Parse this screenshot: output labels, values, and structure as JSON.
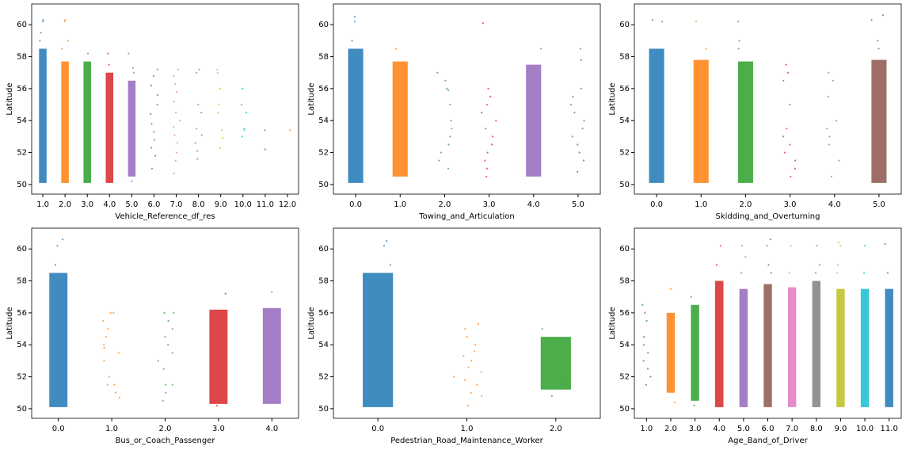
{
  "chart_data": [
    {
      "type": "strip",
      "xlabel": "Vehicle_Reference_df_res",
      "ylabel": "Latitude",
      "categories": [
        "1.0",
        "2.0",
        "3.0",
        "4.0",
        "5.0",
        "6.0",
        "7.0",
        "8.0",
        "9.0",
        "10.0",
        "11.0",
        "12.0"
      ],
      "ylim": [
        49.4,
        61.3
      ],
      "yticks": [
        50,
        52,
        54,
        56,
        58,
        60
      ],
      "strips": [
        {
          "color": "#1f77b4",
          "band": [
            50.1,
            58.5
          ],
          "points": [
            60.2,
            60.3,
            59.0,
            59.5
          ]
        },
        {
          "color": "#ff7f0e",
          "band": [
            50.1,
            57.7
          ],
          "points": [
            60.2,
            60.3,
            58.5,
            59.0
          ]
        },
        {
          "color": "#2ca02c",
          "band": [
            50.1,
            57.7
          ],
          "points": [
            58.2
          ]
        },
        {
          "color": "#d62728",
          "band": [
            50.1,
            57.0
          ],
          "points": [
            57.5,
            58.2
          ]
        },
        {
          "color": "#9467bd",
          "band": [
            50.5,
            56.5
          ],
          "points": [
            57.0,
            57.3,
            58.2,
            50.2
          ]
        },
        {
          "color": "#8c564b",
          "points": [
            51.0,
            51.8,
            52.3,
            52.8,
            53.3,
            53.8,
            54.4,
            55.0,
            55.6,
            56.2,
            56.8,
            57.2
          ]
        },
        {
          "color": "#e377c2",
          "points": [
            50.7,
            51.5,
            52.0,
            52.6,
            53.1,
            53.6,
            54.0,
            54.5,
            55.2,
            55.8,
            56.3,
            56.8,
            57.2
          ]
        },
        {
          "color": "#7f7f7f",
          "points": [
            51.6,
            52.1,
            52.6,
            53.1,
            53.5,
            54.5,
            55.0,
            57.0,
            57.2
          ]
        },
        {
          "color": "#bcbd22",
          "points": [
            52.3,
            52.9,
            53.4,
            54.5,
            55.0,
            56.0,
            57.0,
            57.2
          ]
        },
        {
          "color": "#17becf",
          "points": [
            53.0,
            53.4,
            53.5,
            54.5,
            55.0,
            56.0
          ]
        },
        {
          "color": "#1f77b4",
          "points": [
            52.2,
            53.4
          ]
        },
        {
          "color": "#ff7f0e",
          "points": [
            53.4
          ]
        }
      ]
    },
    {
      "type": "strip",
      "xlabel": "Towing_and_Articulation",
      "ylabel": "Latitude",
      "categories": [
        "0.0",
        "1.0",
        "2.0",
        "3.0",
        "4.0",
        "5.0"
      ],
      "ylim": [
        49.4,
        61.3
      ],
      "yticks": [
        50,
        52,
        54,
        56,
        58,
        60
      ],
      "strips": [
        {
          "color": "#1f77b4",
          "band": [
            50.1,
            58.5
          ],
          "points": [
            60.2,
            60.5,
            59.0
          ]
        },
        {
          "color": "#ff7f0e",
          "band": [
            50.5,
            57.7
          ],
          "points": [
            58.5
          ]
        },
        {
          "color": "#2ca02c",
          "points": [
            51.0,
            51.5,
            52.0,
            52.5,
            53.0,
            53.5,
            54.0,
            55.0,
            55.9,
            56.0,
            56.5,
            57.0
          ]
        },
        {
          "color": "#d62728",
          "points": [
            50.5,
            51.0,
            51.5,
            52.0,
            52.5,
            53.0,
            53.5,
            54.0,
            54.5,
            55.0,
            55.5,
            56.0,
            60.1
          ]
        },
        {
          "color": "#9467bd",
          "band": [
            50.5,
            57.5
          ],
          "points": [
            58.5
          ]
        },
        {
          "color": "#8c564b",
          "points": [
            50.8,
            51.5,
            52.0,
            52.5,
            53.0,
            53.5,
            54.0,
            54.5,
            55.0,
            55.5,
            56.0,
            57.8,
            58.5
          ]
        }
      ]
    },
    {
      "type": "strip",
      "xlabel": "Skidding_and_Overturning",
      "ylabel": "Latitude",
      "categories": [
        "0.0",
        "1.0",
        "2.0",
        "3.0",
        "4.0",
        "5.0"
      ],
      "ylim": [
        49.4,
        61.3
      ],
      "yticks": [
        50,
        52,
        54,
        56,
        58,
        60
      ],
      "strips": [
        {
          "color": "#1f77b4",
          "band": [
            50.1,
            58.5
          ],
          "points": [
            60.2,
            60.3
          ]
        },
        {
          "color": "#ff7f0e",
          "band": [
            50.1,
            57.8
          ],
          "points": [
            58.5,
            60.2
          ]
        },
        {
          "color": "#2ca02c",
          "band": [
            50.1,
            57.7
          ],
          "points": [
            58.5,
            59.0,
            60.2
          ]
        },
        {
          "color": "#d62728",
          "points": [
            50.5,
            51.0,
            51.5,
            52.0,
            52.5,
            53.0,
            53.5,
            55.0,
            56.5,
            57.0,
            57.5
          ]
        },
        {
          "color": "#9467bd",
          "points": [
            50.5,
            51.5,
            52.5,
            53.0,
            53.5,
            54.0,
            55.5,
            56.5,
            57.0
          ]
        },
        {
          "color": "#8c564b",
          "band": [
            50.1,
            57.8
          ],
          "points": [
            58.5,
            59.0,
            60.3,
            60.6
          ]
        }
      ]
    },
    {
      "type": "strip",
      "xlabel": "Bus_or_Coach_Passenger",
      "ylabel": "Latitude",
      "categories": [
        "0.0",
        "1.0",
        "2.0",
        "3.0",
        "4.0"
      ],
      "ylim": [
        49.4,
        61.3
      ],
      "yticks": [
        50,
        52,
        54,
        56,
        58,
        60
      ],
      "strips": [
        {
          "color": "#1f77b4",
          "band": [
            50.1,
            58.5
          ],
          "points": [
            60.2,
            60.6,
            59.0
          ]
        },
        {
          "color": "#ff7f0e",
          "points": [
            50.7,
            51.0,
            51.5,
            51.5,
            52.0,
            53.0,
            53.5,
            53.8,
            54.0,
            54.5,
            55.0,
            55.5,
            56.0,
            56.0
          ]
        },
        {
          "color": "#2ca02c",
          "points": [
            50.5,
            51.0,
            51.5,
            51.5,
            52.5,
            53.0,
            53.5,
            54.0,
            54.5,
            55.0,
            55.5,
            56.0,
            56.0
          ]
        },
        {
          "color": "#d62728",
          "band": [
            50.3,
            56.2
          ],
          "points": [
            57.2,
            50.2
          ]
        },
        {
          "color": "#9467bd",
          "band": [
            50.3,
            56.3
          ],
          "points": [
            57.3
          ]
        }
      ]
    },
    {
      "type": "strip",
      "xlabel": "Pedestrian_Road_Maintenance_Worker",
      "ylabel": "Latitude",
      "categories": [
        "0.0",
        "1.0",
        "2.0"
      ],
      "ylim": [
        49.4,
        61.3
      ],
      "yticks": [
        50,
        52,
        54,
        56,
        58,
        60
      ],
      "strips": [
        {
          "color": "#1f77b4",
          "band": [
            50.1,
            58.5
          ],
          "points": [
            60.2,
            60.5,
            59.0
          ]
        },
        {
          "color": "#ff7f0e",
          "points": [
            50.2,
            50.8,
            51.0,
            51.5,
            51.8,
            52.0,
            52.3,
            52.6,
            53.0,
            53.3,
            53.6,
            54.0,
            54.5,
            55.0,
            55.3
          ]
        },
        {
          "color": "#2ca02c",
          "band": [
            51.2,
            54.5
          ],
          "points": [
            51.5,
            55.0,
            50.8
          ]
        }
      ]
    },
    {
      "type": "strip",
      "xlabel": "Age_Band_of_Driver",
      "ylabel": "Latitude",
      "categories": [
        "1.0",
        "2.0",
        "3.0",
        "4.0",
        "5.0",
        "6.0",
        "7.0",
        "8.0",
        "9.0",
        "10.0",
        "11.0"
      ],
      "ylim": [
        49.4,
        61.3
      ],
      "yticks": [
        50,
        52,
        54,
        56,
        58,
        60
      ],
      "strips": [
        {
          "color": "#1f77b4",
          "points": [
            51.5,
            52.0,
            52.5,
            53.0,
            53.5,
            54.0,
            54.5,
            55.5,
            56.0,
            56.5
          ]
        },
        {
          "color": "#ff7f0e",
          "band": [
            51.0,
            56.0
          ],
          "points": [
            50.4,
            57.5
          ]
        },
        {
          "color": "#2ca02c",
          "band": [
            50.5,
            56.5
          ],
          "points": [
            57.0,
            50.2
          ]
        },
        {
          "color": "#d62728",
          "band": [
            50.1,
            58.0
          ],
          "points": [
            59.0,
            60.2
          ]
        },
        {
          "color": "#9467bd",
          "band": [
            50.1,
            57.5
          ],
          "points": [
            58.5,
            59.5,
            60.2
          ]
        },
        {
          "color": "#8c564b",
          "band": [
            50.1,
            57.8
          ],
          "points": [
            58.5,
            59.0,
            60.2,
            60.6
          ]
        },
        {
          "color": "#e377c2",
          "band": [
            50.1,
            57.6
          ],
          "points": [
            58.5,
            60.2
          ]
        },
        {
          "color": "#7f7f7f",
          "band": [
            50.1,
            58.0
          ],
          "points": [
            58.5,
            59.0,
            60.2
          ]
        },
        {
          "color": "#bcbd22",
          "band": [
            50.1,
            57.5
          ],
          "points": [
            58.5,
            59.0,
            60.2,
            60.4
          ]
        },
        {
          "color": "#17becf",
          "band": [
            50.1,
            57.5
          ],
          "points": [
            58.5,
            60.2
          ]
        },
        {
          "color": "#1f77b4",
          "band": [
            50.1,
            57.5
          ],
          "points": [
            58.5,
            60.3
          ]
        }
      ]
    }
  ]
}
